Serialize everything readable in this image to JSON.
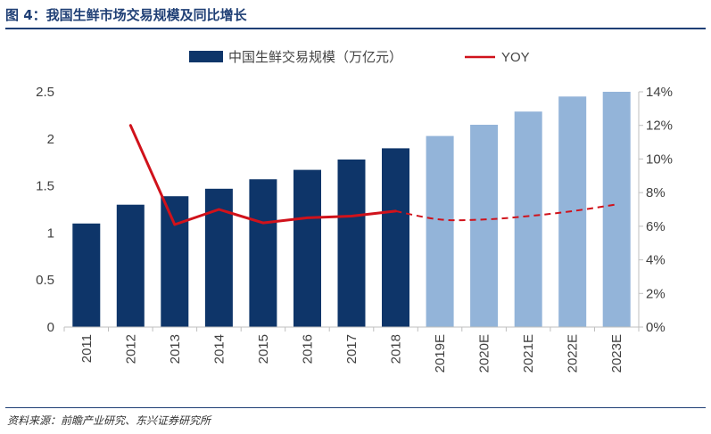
{
  "figure": {
    "title": "图 4：我国生鲜市场交易规模及同比增长",
    "source": "资料来源：前瞻产业研究、东兴证券研究所"
  },
  "chart_data": {
    "type": "bar",
    "categories": [
      "2011",
      "2012",
      "2013",
      "2014",
      "2015",
      "2016",
      "2017",
      "2018",
      "2019E",
      "2020E",
      "2021E",
      "2022E",
      "2023E"
    ],
    "series": [
      {
        "name": "中国生鲜交易规模（万亿元）",
        "type": "bar",
        "axis": "left",
        "values": [
          1.1,
          1.3,
          1.39,
          1.47,
          1.57,
          1.67,
          1.78,
          1.9,
          2.03,
          2.15,
          2.29,
          2.45,
          2.5
        ],
        "color": "#0e3569",
        "forecast_color": "#93b4d9"
      },
      {
        "name": "YOY",
        "type": "line",
        "axis": "right",
        "values": [
          null,
          12.0,
          6.1,
          7.0,
          6.2,
          6.5,
          6.6,
          6.9,
          6.4,
          6.4,
          6.6,
          6.9,
          7.3
        ],
        "unit": "%",
        "color": "#d0121b",
        "forecast_style": "dashed"
      }
    ],
    "forecast_start_index": 8,
    "y_left": {
      "ticks": [
        "0",
        "0.5",
        "1",
        "1.5",
        "2",
        "2.5"
      ],
      "min": 0,
      "max": 2.5
    },
    "y_right": {
      "ticks": [
        "0%",
        "2%",
        "4%",
        "6%",
        "8%",
        "10%",
        "12%",
        "14%"
      ],
      "min": 0,
      "max": 14
    },
    "legend": {
      "position": "top"
    },
    "grid": false
  }
}
